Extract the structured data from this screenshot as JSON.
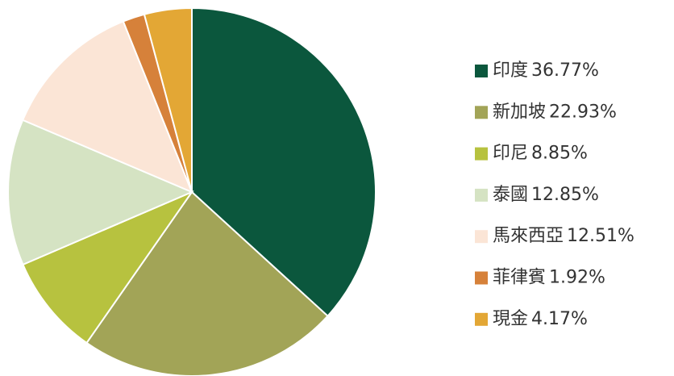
{
  "chart_data": {
    "type": "pie",
    "categories": [
      "印度",
      "新加坡",
      "印尼",
      "泰國",
      "馬來西亞",
      "菲律賓",
      "現金"
    ],
    "values": [
      36.77,
      22.93,
      8.85,
      12.85,
      12.51,
      1.92,
      4.17
    ],
    "value_labels": [
      "36.77%",
      "22.93%",
      "8.85%",
      "12.85%",
      "12.51%",
      "1.92%",
      "4.17%"
    ],
    "colors": [
      "#0b573d",
      "#a2a457",
      "#b7c23f",
      "#d5e3c3",
      "#fbe5d6",
      "#d6813a",
      "#e3a735"
    ],
    "legend": "right"
  }
}
